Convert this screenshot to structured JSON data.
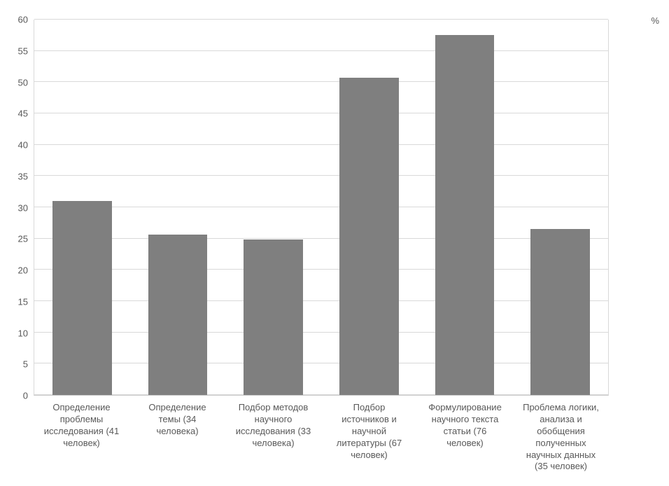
{
  "chart_data": {
    "type": "bar",
    "title": "",
    "xlabel": "",
    "ylabel": "",
    "categories": [
      "Определение проблемы исследования (41 человек)",
      "Определение темы (34 человека)",
      "Подбор методов научного исследования (33 человека)",
      "Подбор источников и научной литературы (67 человек)",
      "Формулирование научного текста статьи (76 человек)",
      "Проблема логики, анализа и обобщения полученных научных данных (35 человек)"
    ],
    "values": [
      31,
      25.6,
      24.9,
      50.7,
      57.5,
      26.5
    ],
    "ylim": [
      0,
      60
    ],
    "yticks": [
      0,
      5,
      10,
      15,
      20,
      25,
      30,
      35,
      40,
      45,
      50,
      55,
      60
    ],
    "grid": "horizontal",
    "legend": {
      "label": "%",
      "position": "top-right"
    },
    "colors": {
      "bar": "#7f7f7f",
      "gridline": "#d9d9d9",
      "text": "#595959",
      "background": "#ffffff"
    }
  }
}
